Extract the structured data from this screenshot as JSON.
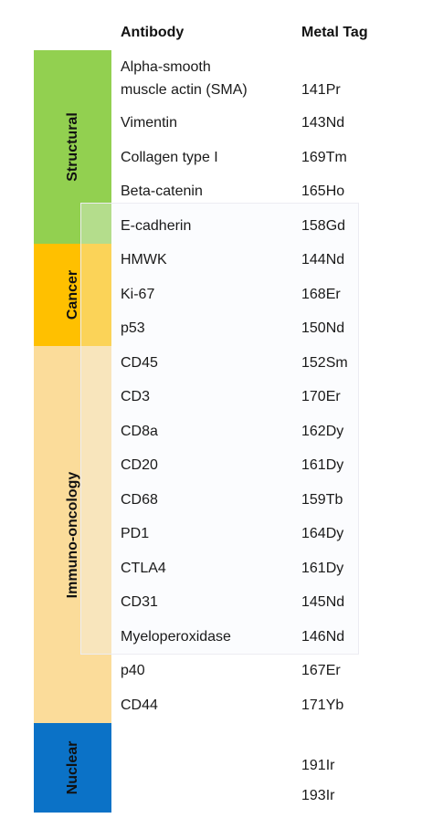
{
  "headers": {
    "antibody": "Antibody",
    "metal_tag": "Metal Tag"
  },
  "categories": [
    {
      "label": "Structural",
      "color": "#92d050"
    },
    {
      "label": "Cancer",
      "color": "#ffc000"
    },
    {
      "label": "Immuno-oncology",
      "color": "#fbdc9a"
    },
    {
      "label": "Nuclear",
      "color": "#0b72c7"
    }
  ],
  "rows": [
    {
      "antibody_line1": "Alpha-smooth",
      "antibody_line2": "muscle actin (SMA)",
      "metal": "141Pr"
    },
    {
      "antibody": "Vimentin",
      "metal": "143Nd"
    },
    {
      "antibody": "Collagen type I",
      "metal": "169Tm"
    },
    {
      "antibody": "Beta-catenin",
      "metal": "165Ho"
    },
    {
      "antibody": "E-cadherin",
      "metal": "158Gd"
    },
    {
      "antibody": "HMWK",
      "metal": "144Nd"
    },
    {
      "antibody": "Ki-67",
      "metal": "168Er"
    },
    {
      "antibody": "p53",
      "metal": "150Nd"
    },
    {
      "antibody": "CD45",
      "metal": "152Sm"
    },
    {
      "antibody": "CD3",
      "metal": "170Er"
    },
    {
      "antibody": "CD8a",
      "metal": "162Dy"
    },
    {
      "antibody": "CD20",
      "metal": "161Dy"
    },
    {
      "antibody": "CD68",
      "metal": "159Tb"
    },
    {
      "antibody": "PD1",
      "metal": "164Dy"
    },
    {
      "antibody": "CTLA4",
      "metal": "161Dy"
    },
    {
      "antibody": "CD31",
      "metal": "145Nd"
    },
    {
      "antibody": "Myeloperoxidase",
      "metal": "146Nd"
    },
    {
      "antibody": "p40",
      "metal": "167Er"
    },
    {
      "antibody": "CD44",
      "metal": "171Yb"
    },
    {
      "antibody": "",
      "metal": "191Ir"
    },
    {
      "antibody": "",
      "metal": "193Ir"
    }
  ]
}
